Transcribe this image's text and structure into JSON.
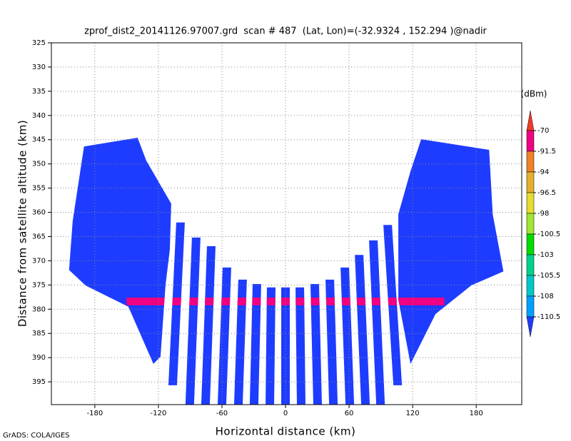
{
  "chart_data": {
    "type": "profile",
    "title": "zprof_dist2_20141126.97007.grd  scan # 487  (Lat, Lon)=(-32.9324 , 152.294 )@nadir",
    "xlabel": "Horizontal distance (km)",
    "ylabel": "Distance from satellite altitude (km)",
    "footer": "GrADS: COLA/IGES",
    "xlim": [
      -221,
      223
    ],
    "ylim": [
      325,
      399.7
    ],
    "xticks": [
      -180,
      -120,
      -60,
      0,
      60,
      120,
      180
    ],
    "yticks": [
      325,
      330,
      335,
      340,
      345,
      350,
      355,
      360,
      365,
      370,
      375,
      380,
      385,
      390,
      395
    ],
    "grid": true,
    "colorbar": {
      "units": "(dBm)",
      "levels": [
        -70,
        -91.5,
        -94,
        -96.5,
        -98,
        -100.5,
        -103,
        -105.5,
        -108,
        -110.5
      ],
      "colors": [
        "#f03c28",
        "#f00082",
        "#f08228",
        "#e6af2d",
        "#e6dc32",
        "#a0e632",
        "#00dc00",
        "#00d28c",
        "#00c8c8",
        "#00a0ff",
        "#1e3cff"
      ]
    },
    "field_value": -112,
    "strips": [
      {
        "x": [
          -99.1,
          -106.5
        ],
        "y": [
          362.1,
          395.7
        ]
      },
      {
        "x": [
          -84.3,
          -90.4
        ],
        "y": [
          365.2,
          399.7
        ]
      },
      {
        "x": [
          -70.1,
          -75.5
        ],
        "y": [
          367.0,
          399.7
        ]
      },
      {
        "x": [
          -55.3,
          -60.0
        ],
        "y": [
          371.4,
          399.7
        ]
      },
      {
        "x": [
          -40.5,
          -44.5
        ],
        "y": [
          373.9,
          399.7
        ]
      },
      {
        "x": [
          -27.0,
          -29.7
        ],
        "y": [
          374.8,
          399.7
        ]
      },
      {
        "x": [
          -13.5,
          -14.8
        ],
        "y": [
          375.5,
          399.7
        ]
      },
      {
        "x": [
          0,
          0
        ],
        "y": [
          375.5,
          399.7
        ]
      },
      {
        "x": [
          13.5,
          14.8
        ],
        "y": [
          375.5,
          399.7
        ]
      },
      {
        "x": [
          27.6,
          30.3
        ],
        "y": [
          374.8,
          399.7
        ]
      },
      {
        "x": [
          41.8,
          45.2
        ],
        "y": [
          373.9,
          399.7
        ]
      },
      {
        "x": [
          56.0,
          60.7
        ],
        "y": [
          371.4,
          399.7
        ]
      },
      {
        "x": [
          69.5,
          75.5
        ],
        "y": [
          368.8,
          399.7
        ]
      },
      {
        "x": [
          82.9,
          89.7
        ],
        "y": [
          365.8,
          399.7
        ]
      },
      {
        "x": [
          96.4,
          105.9
        ],
        "y": [
          362.6,
          395.7
        ]
      }
    ],
    "swaths": [
      [
        [
          -190.2,
          346.4
        ],
        [
          -139.6,
          344.6
        ],
        [
          -131.5,
          349.3
        ],
        [
          -107.9,
          358.2
        ],
        [
          -109.2,
          367.7
        ],
        [
          -113.3,
          375.1
        ],
        [
          -118.0,
          389.8
        ],
        [
          -124.7,
          391.3
        ],
        [
          -148.3,
          379.5
        ],
        [
          -188.8,
          375.1
        ],
        [
          -204.3,
          371.9
        ],
        [
          -200.9,
          361.8
        ]
      ],
      [
        [
          128.1,
          344.9
        ],
        [
          192.2,
          347.1
        ],
        [
          195.6,
          360.4
        ],
        [
          205.7,
          372.2
        ],
        [
          175.3,
          375.1
        ],
        [
          141.6,
          381.0
        ],
        [
          118.0,
          391.3
        ],
        [
          106.5,
          378.0
        ],
        [
          106.5,
          360.4
        ],
        [
          118.0,
          351.5
        ]
      ]
    ],
    "surface": {
      "xlim": [
        -150,
        150
      ],
      "ylim": [
        377.6,
        379.2
      ],
      "value": -85
    }
  }
}
